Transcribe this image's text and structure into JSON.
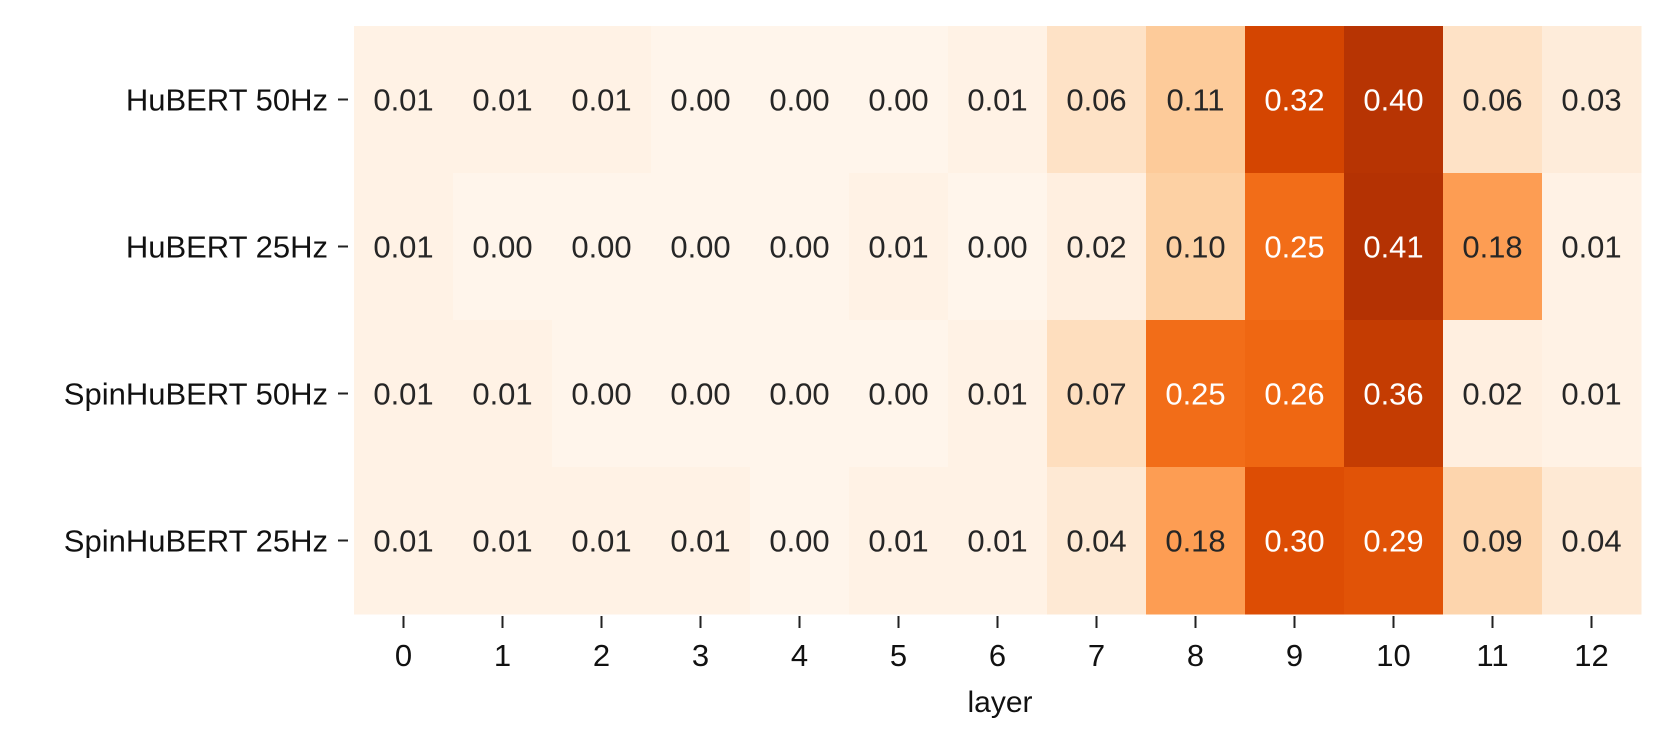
{
  "chart_data": {
    "type": "heatmap",
    "title": "",
    "xlabel": "layer",
    "ylabel": "",
    "x": [
      "0",
      "1",
      "2",
      "3",
      "4",
      "5",
      "6",
      "7",
      "8",
      "9",
      "10",
      "11",
      "12"
    ],
    "rows": [
      "HuBERT 50Hz",
      "HuBERT 25Hz",
      "SpinHuBERT 50Hz",
      "SpinHuBERT 25Hz"
    ],
    "values": [
      [
        0.01,
        0.01,
        0.01,
        0.0,
        0.0,
        0.0,
        0.01,
        0.06,
        0.11,
        0.32,
        0.4,
        0.06,
        0.03
      ],
      [
        0.01,
        0.0,
        0.0,
        0.0,
        0.0,
        0.01,
        0.0,
        0.02,
        0.1,
        0.25,
        0.41,
        0.18,
        0.01
      ],
      [
        0.01,
        0.01,
        0.0,
        0.0,
        0.0,
        0.0,
        0.01,
        0.07,
        0.25,
        0.26,
        0.36,
        0.02,
        0.01
      ],
      [
        0.01,
        0.01,
        0.01,
        0.01,
        0.0,
        0.01,
        0.01,
        0.04,
        0.18,
        0.3,
        0.29,
        0.09,
        0.04
      ]
    ],
    "value_format": "0.00",
    "colormap": "Oranges",
    "vmin": 0.0,
    "vmax": 0.41,
    "colorbar": false,
    "grid": false,
    "legend": "none"
  }
}
